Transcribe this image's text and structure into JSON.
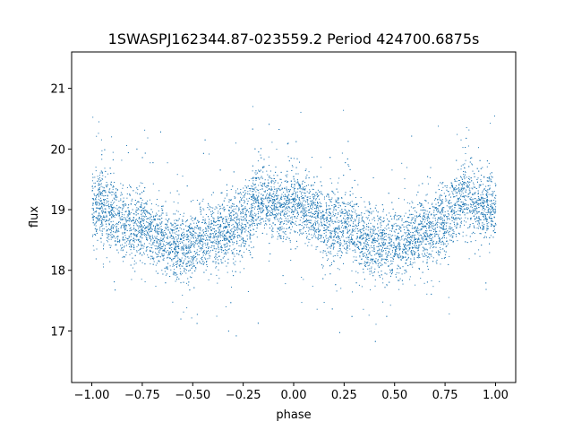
{
  "chart_data": {
    "type": "scatter",
    "title": "1SWASPJ162344.87-023559.2 Period 424700.6875s",
    "xlabel": "phase",
    "ylabel": "flux",
    "xlim": [
      -1.1,
      1.1
    ],
    "ylim": [
      16.15,
      21.6
    ],
    "grid": false,
    "point_color": "#1f77b4",
    "xticks": [
      {
        "value": -1.0,
        "label": "−1.00"
      },
      {
        "value": -0.75,
        "label": "−0.75"
      },
      {
        "value": -0.5,
        "label": "−0.50"
      },
      {
        "value": -0.25,
        "label": "−0.25"
      },
      {
        "value": 0.0,
        "label": "0.00"
      },
      {
        "value": 0.25,
        "label": "0.25"
      },
      {
        "value": 0.5,
        "label": "0.50"
      },
      {
        "value": 0.75,
        "label": "0.75"
      },
      {
        "value": 1.0,
        "label": "1.00"
      }
    ],
    "yticks": [
      {
        "value": 17,
        "label": "17"
      },
      {
        "value": 18,
        "label": "18"
      },
      {
        "value": 19,
        "label": "19"
      },
      {
        "value": 20,
        "label": "20"
      },
      {
        "value": 21,
        "label": "21"
      }
    ],
    "series": [
      {
        "x": [
          -1.0,
          -0.95,
          -0.9,
          -0.85,
          -0.8,
          -0.75,
          -0.7,
          -0.65,
          -0.6,
          -0.55,
          -0.5,
          -0.45,
          -0.4,
          -0.35,
          -0.3,
          -0.25,
          -0.2,
          -0.15,
          -0.1,
          -0.05,
          0.0,
          0.05,
          0.1,
          0.15,
          0.2,
          0.25,
          0.3,
          0.35,
          0.4,
          0.45,
          0.5,
          0.55,
          0.6,
          0.65,
          0.7,
          0.75,
          0.8,
          0.85,
          0.9,
          0.95,
          1.0
        ],
        "y": [
          19.05,
          19.1,
          18.95,
          18.75,
          18.7,
          18.8,
          18.65,
          18.5,
          18.45,
          18.4,
          18.45,
          18.5,
          18.6,
          18.65,
          18.75,
          18.85,
          19.1,
          19.25,
          19.1,
          19.05,
          19.1,
          19.05,
          18.95,
          18.75,
          18.7,
          18.8,
          18.65,
          18.5,
          18.45,
          18.4,
          18.45,
          18.5,
          18.6,
          18.65,
          18.75,
          18.85,
          19.1,
          19.25,
          19.1,
          19.05,
          19.05
        ]
      }
    ]
  }
}
